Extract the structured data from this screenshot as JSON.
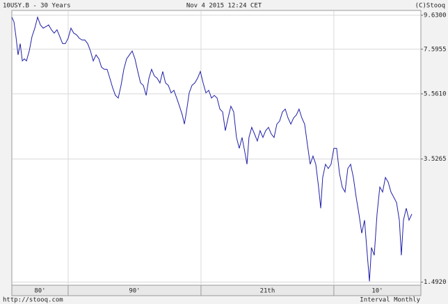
{
  "chart_data": {
    "type": "line",
    "title": "10USY.B - 30 Years",
    "subtitle": "Nov 4 2015 12:24 CET",
    "copyright": "(C)Stooq",
    "source": "http://stooq.com",
    "interval": "Interval Monthly",
    "log_scale": true,
    "grid": true,
    "xlim": [
      1985.76,
      2016.55
    ],
    "ylim": [
      1.46,
      9.96
    ],
    "yticks": [
      {
        "value": 9.63,
        "label": "9.6300"
      },
      7.5955,
      {
        "value": 5.561,
        "label": "5.5610"
      },
      3.5265,
      {
        "value": 1.492,
        "label": "1.4920"
      }
    ],
    "decade_labels": [
      {
        "value": 1980,
        "label": "80'"
      },
      {
        "value": 1990,
        "label": "90'"
      },
      {
        "value": 2000,
        "label": "21th"
      },
      {
        "value": 2010,
        "label": "10'"
      }
    ],
    "x": [
      1985.76,
      1985.92,
      1986.07,
      1986.23,
      1986.39,
      1986.55,
      1986.7,
      1986.86,
      1987.07,
      1987.28,
      1987.49,
      1987.7,
      1987.91,
      1988.12,
      1988.33,
      1988.53,
      1988.74,
      1988.95,
      1989.16,
      1989.37,
      1989.58,
      1989.79,
      1990.0,
      1990.21,
      1990.42,
      1990.63,
      1990.84,
      1991.05,
      1991.26,
      1991.47,
      1991.68,
      1991.89,
      1992.1,
      1992.31,
      1992.51,
      1992.72,
      1992.93,
      1993.14,
      1993.35,
      1993.56,
      1993.77,
      1993.98,
      1994.19,
      1994.4,
      1994.61,
      1994.82,
      1995.03,
      1995.24,
      1995.45,
      1995.66,
      1995.87,
      1996.08,
      1996.28,
      1996.49,
      1996.7,
      1996.91,
      1997.12,
      1997.33,
      1997.54,
      1997.75,
      1997.96,
      1998.17,
      1998.38,
      1998.59,
      1998.75,
      1998.9,
      1999.11,
      1999.32,
      1999.53,
      1999.74,
      1999.95,
      2000.16,
      2000.37,
      2000.58,
      2000.79,
      2001.0,
      2001.21,
      2001.42,
      2001.63,
      2001.83,
      2002.04,
      2002.25,
      2002.46,
      2002.67,
      2002.88,
      2003.09,
      2003.3,
      2003.46,
      2003.61,
      2003.82,
      2004.03,
      2004.24,
      2004.45,
      2004.66,
      2004.87,
      2005.08,
      2005.29,
      2005.5,
      2005.71,
      2005.92,
      2006.13,
      2006.34,
      2006.55,
      2006.76,
      2006.97,
      2007.18,
      2007.38,
      2007.59,
      2007.8,
      2008.01,
      2008.22,
      2008.43,
      2008.64,
      2008.85,
      2009.01,
      2009.16,
      2009.37,
      2009.58,
      2009.79,
      2010.0,
      2010.21,
      2010.42,
      2010.63,
      2010.84,
      2011.05,
      2011.26,
      2011.47,
      2011.68,
      2011.89,
      2012.1,
      2012.31,
      2012.52,
      2012.68,
      2012.83,
      2013.04,
      2013.25,
      2013.46,
      2013.67,
      2013.88,
      2014.09,
      2014.3,
      2014.51,
      2014.72,
      2014.93,
      2015.08,
      2015.24,
      2015.45,
      2015.66,
      2015.87
    ],
    "series": [
      {
        "name": "10USY.B",
        "color": "#1f1fa8",
        "values": [
          9.5,
          9.2,
          8.3,
          7.3,
          7.9,
          7.0,
          7.1,
          7.0,
          7.5,
          8.3,
          8.8,
          9.5,
          9.0,
          8.8,
          8.9,
          9.0,
          8.7,
          8.5,
          8.7,
          8.3,
          7.9,
          7.9,
          8.2,
          8.8,
          8.5,
          8.4,
          8.2,
          8.1,
          8.1,
          7.9,
          7.5,
          7.0,
          7.3,
          7.1,
          6.7,
          6.6,
          6.6,
          6.2,
          5.8,
          5.5,
          5.4,
          5.9,
          6.6,
          7.1,
          7.3,
          7.5,
          7.1,
          6.5,
          6.0,
          5.9,
          5.5,
          6.2,
          6.6,
          6.3,
          6.2,
          6.0,
          6.5,
          6.0,
          5.9,
          5.6,
          5.7,
          5.4,
          5.1,
          4.8,
          4.5,
          4.9,
          5.6,
          5.9,
          6.0,
          6.2,
          6.5,
          6.0,
          5.6,
          5.7,
          5.4,
          5.5,
          5.4,
          5.0,
          4.9,
          4.3,
          4.7,
          5.1,
          4.9,
          4.1,
          3.8,
          4.1,
          3.7,
          3.4,
          4.1,
          4.4,
          4.2,
          4.0,
          4.3,
          4.1,
          4.3,
          4.4,
          4.2,
          4.1,
          4.5,
          4.6,
          4.9,
          5.0,
          4.7,
          4.5,
          4.7,
          4.8,
          5.0,
          4.7,
          4.5,
          3.9,
          3.4,
          3.6,
          3.4,
          2.9,
          2.5,
          3.1,
          3.4,
          3.3,
          3.4,
          3.8,
          3.8,
          3.2,
          2.9,
          2.8,
          3.3,
          3.4,
          3.1,
          2.7,
          2.4,
          2.1,
          2.3,
          1.8,
          1.5,
          1.9,
          1.8,
          2.4,
          2.9,
          2.8,
          3.1,
          3.0,
          2.8,
          2.7,
          2.6,
          2.3,
          1.8,
          2.3,
          2.5,
          2.3,
          2.4
        ]
      }
    ]
  }
}
